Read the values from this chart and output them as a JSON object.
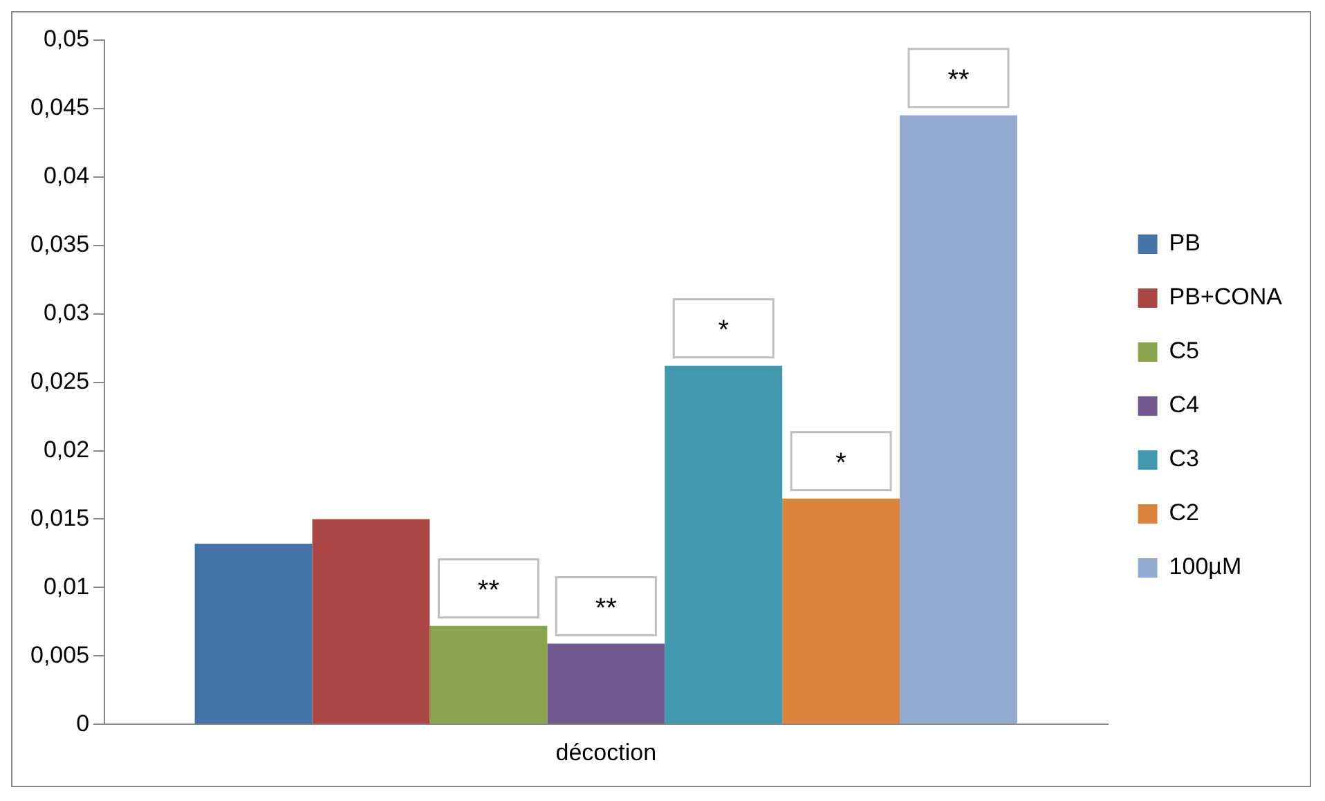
{
  "chart_data": {
    "type": "bar",
    "categories": [
      "décoction"
    ],
    "series": [
      {
        "name": "PB",
        "color": "#4572a7",
        "values": [
          0.0132
        ]
      },
      {
        "name": "PB+CONA",
        "color": "#aa4643",
        "values": [
          0.015
        ]
      },
      {
        "name": "C5",
        "color": "#89a54e",
        "values": [
          0.0072
        ],
        "value_labels": [
          "**"
        ]
      },
      {
        "name": "C4",
        "color": "#71588f",
        "values": [
          0.0059
        ],
        "value_labels": [
          "**"
        ]
      },
      {
        "name": "C3",
        "color": "#4198af",
        "values": [
          0.0262
        ],
        "value_labels": [
          "*"
        ]
      },
      {
        "name": "C2",
        "color": "#db843d",
        "values": [
          0.0165
        ],
        "value_labels": [
          "*"
        ]
      },
      {
        "name": "100µM",
        "color": "#93a9cf",
        "values": [
          0.0445
        ],
        "value_labels": [
          "**"
        ]
      }
    ],
    "ylim": [
      0,
      0.05
    ],
    "yticks": [
      {
        "value": 0,
        "label": "0"
      },
      {
        "value": 0.005,
        "label": "0,005"
      },
      {
        "value": 0.01,
        "label": "0,01"
      },
      {
        "value": 0.015,
        "label": "0,015"
      },
      {
        "value": 0.02,
        "label": "0,02"
      },
      {
        "value": 0.025,
        "label": "0,025"
      },
      {
        "value": 0.03,
        "label": "0,03"
      },
      {
        "value": 0.035,
        "label": "0,035"
      },
      {
        "value": 0.04,
        "label": "0,04"
      },
      {
        "value": 0.045,
        "label": "0,045"
      },
      {
        "value": 0.05,
        "label": "0,05"
      }
    ],
    "grid": false,
    "legend": "right"
  }
}
